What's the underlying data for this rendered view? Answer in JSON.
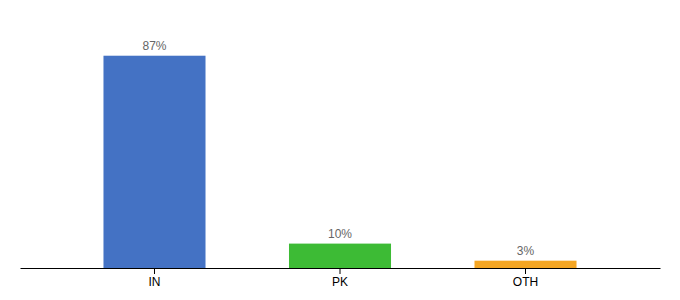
{
  "chart_data": {
    "type": "bar",
    "categories": [
      "IN",
      "PK",
      "OTH"
    ],
    "values": [
      87,
      10,
      3
    ],
    "value_labels": [
      "87%",
      "10%",
      "3%"
    ],
    "colors": [
      "#4472c4",
      "#3dbb35",
      "#f5a623"
    ],
    "ylim": [
      0,
      100
    ],
    "data_labels": true,
    "tick_labels": "x"
  }
}
